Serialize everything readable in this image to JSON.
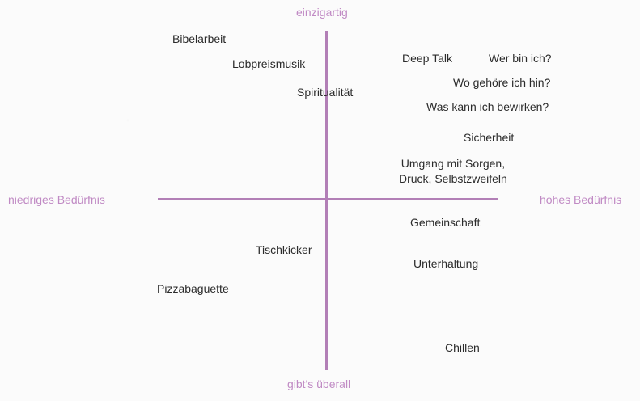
{
  "colors": {
    "axis": "#b27fb6",
    "axis_label": "#c08ac4",
    "text": "#2b2b2b",
    "background": "#fbfbfb"
  },
  "axes": {
    "top": "einzigartig",
    "bottom": "gibt's überall",
    "left": "niedriges Bedürfnis",
    "right": "hohes Bedürfnis"
  },
  "items": {
    "bibelarbeit": "Bibelarbeit",
    "lobpreismusik": "Lobpreismusik",
    "spiritualitaet": "Spiritualität",
    "deep_talk": "Deep Talk",
    "wer_bin_ich": "Wer bin ich?",
    "wo_gehoere_ich_hin": "Wo gehöre ich hin?",
    "was_kann_ich_bewirken": "Was kann ich bewirken?",
    "sicherheit": "Sicherheit",
    "umgang_mit_sorgen": "Umgang mit Sorgen,\nDruck, Selbstzweifeln",
    "gemeinschaft": "Gemeinschaft",
    "unterhaltung": "Unterhaltung",
    "tischkicker": "Tischkicker",
    "pizzabaguette": "Pizzabaguette",
    "chillen": "Chillen"
  }
}
